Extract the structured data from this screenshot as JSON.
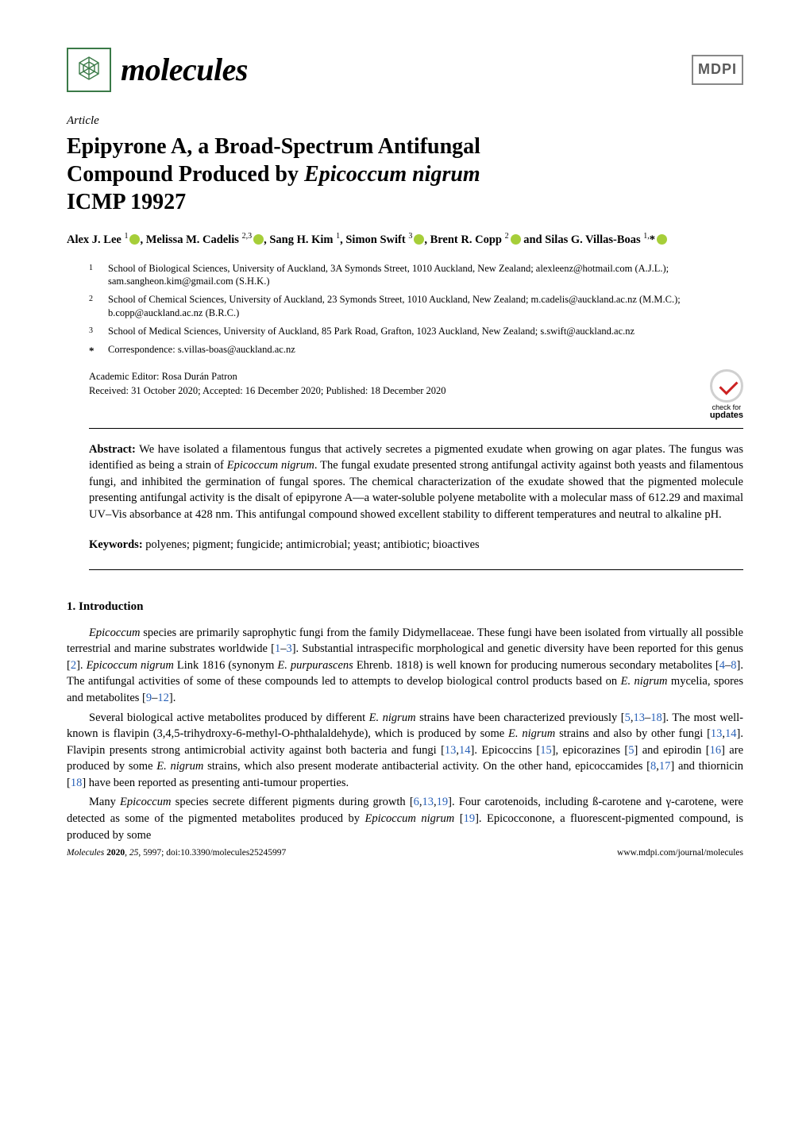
{
  "journal": {
    "name": "molecules",
    "logo_color": "#3a7a47"
  },
  "publisher": {
    "name": "MDPI"
  },
  "article_type": "Article",
  "title": {
    "line1": "Epipyrone A, a Broad-Spectrum Antifungal",
    "line2_prefix": "Compound Produced by ",
    "line2_species": "Epicoccum nigrum",
    "line3": "ICMP 19927"
  },
  "authors_html": "Alex J. Lee <sup>1</sup><span class=\"orcid\"></span>, Melissa M. Cadelis <sup>2,3</sup><span class=\"orcid\"></span>, Sang H. Kim <sup>1</sup>, Simon Swift <sup>3</sup><span class=\"orcid\"></span>, Brent R. Copp <sup>2</sup><span class=\"orcid\"></span> and Silas G. Villas-Boas <sup>1,</sup>*<span class=\"orcid\"></span>",
  "affiliations": [
    {
      "num": "1",
      "text": "School of Biological Sciences, University of Auckland, 3A Symonds Street, 1010 Auckland, New Zealand; alexleenz@hotmail.com (A.J.L.); sam.sangheon.kim@gmail.com (S.H.K.)"
    },
    {
      "num": "2",
      "text": "School of Chemical Sciences, University of Auckland, 23 Symonds Street, 1010 Auckland, New Zealand; m.cadelis@auckland.ac.nz (M.M.C.); b.copp@auckland.ac.nz (B.R.C.)"
    },
    {
      "num": "3",
      "text": "School of Medical Sciences, University of Auckland, 85 Park Road, Grafton, 1023 Auckland, New Zealand; s.swift@auckland.ac.nz"
    },
    {
      "num": "*",
      "text": "Correspondence: s.villas-boas@auckland.ac.nz"
    }
  ],
  "meta": {
    "editor": "Academic Editor: Rosa Durán Patron",
    "dates": "Received: 31 October 2020; Accepted: 16 December 2020; Published: 18 December 2020"
  },
  "check_updates": {
    "top": "check for",
    "bottom": "updates"
  },
  "abstract": {
    "label": "Abstract:",
    "text": "We have isolated a filamentous fungus that actively secretes a pigmented exudate when growing on agar plates. The fungus was identified as being a strain of <i>Epicoccum nigrum</i>. The fungal exudate presented strong antifungal activity against both yeasts and filamentous fungi, and inhibited the germination of fungal spores. The chemical characterization of the exudate showed that the pigmented molecule presenting antifungal activity is the disalt of epipyrone A—a water-soluble polyene metabolite with a molecular mass of 612.29 and maximal UV–Vis absorbance at 428 nm. This antifungal compound showed excellent stability to different temperatures and neutral to alkaline pH."
  },
  "keywords": {
    "label": "Keywords:",
    "text": "polyenes; pigment; fungicide; antimicrobial; yeast; antibiotic; bioactives"
  },
  "section1": {
    "heading": "1. Introduction",
    "paragraphs": [
      "<i>Epicoccum</i> species are primarily saprophytic fungi from the family Didymellaceae. These fungi have been isolated from virtually all possible terrestrial and marine substrates worldwide [<span class=\"cite\">1</span>–<span class=\"cite\">3</span>]. Substantial intraspecific morphological and genetic diversity have been reported for this genus [<span class=\"cite\">2</span>]. <i>Epicoccum nigrum</i> Link 1816 (synonym <i>E. purpurascens</i> Ehrenb. 1818) is well known for producing numerous secondary metabolites [<span class=\"cite\">4</span>–<span class=\"cite\">8</span>]. The antifungal activities of some of these compounds led to attempts to develop biological control products based on <i>E. nigrum</i> mycelia, spores and metabolites [<span class=\"cite\">9</span>–<span class=\"cite\">12</span>].",
      "Several biological active metabolites produced by different <i>E. nigrum</i> strains have been characterized previously [<span class=\"cite\">5</span>,<span class=\"cite\">13</span>–<span class=\"cite\">18</span>]. The most well-known is flavipin (3,4,5-trihydroxy-6-methyl-O-phthalaldehyde), which is produced by some <i>E. nigrum</i> strains and also by other fungi [<span class=\"cite\">13</span>,<span class=\"cite\">14</span>]. Flavipin presents strong antimicrobial activity against both bacteria and fungi [<span class=\"cite\">13</span>,<span class=\"cite\">14</span>]. Epicoccins [<span class=\"cite\">15</span>], epicorazines [<span class=\"cite\">5</span>] and epirodin [<span class=\"cite\">16</span>] are produced by some <i>E. nigrum</i> strains, which also present moderate antibacterial activity. On the other hand, epicoccamides [<span class=\"cite\">8</span>,<span class=\"cite\">17</span>] and thiornicin [<span class=\"cite\">18</span>] have been reported as presenting anti-tumour properties.",
      "Many <i>Epicoccum</i> species secrete different pigments during growth [<span class=\"cite\">6</span>,<span class=\"cite\">13</span>,<span class=\"cite\">19</span>]. Four carotenoids, including ß-carotene and γ-carotene, were detected as some of the pigmented metabolites produced by <i>Epicoccum nigrum</i> [<span class=\"cite\">19</span>]. Epicocconone, a fluorescent-pigmented compound, is produced by some"
    ]
  },
  "footer": {
    "citation_journal": "Molecules",
    "citation_year": "2020",
    "citation_issue": "25",
    "citation_page": "5997",
    "doi": "doi:10.3390/molecules25245997",
    "url": "www.mdpi.com/journal/molecules"
  },
  "colors": {
    "link": "#2a62b8",
    "orcid": "#a6ce39",
    "text": "#000000",
    "bg": "#ffffff"
  }
}
